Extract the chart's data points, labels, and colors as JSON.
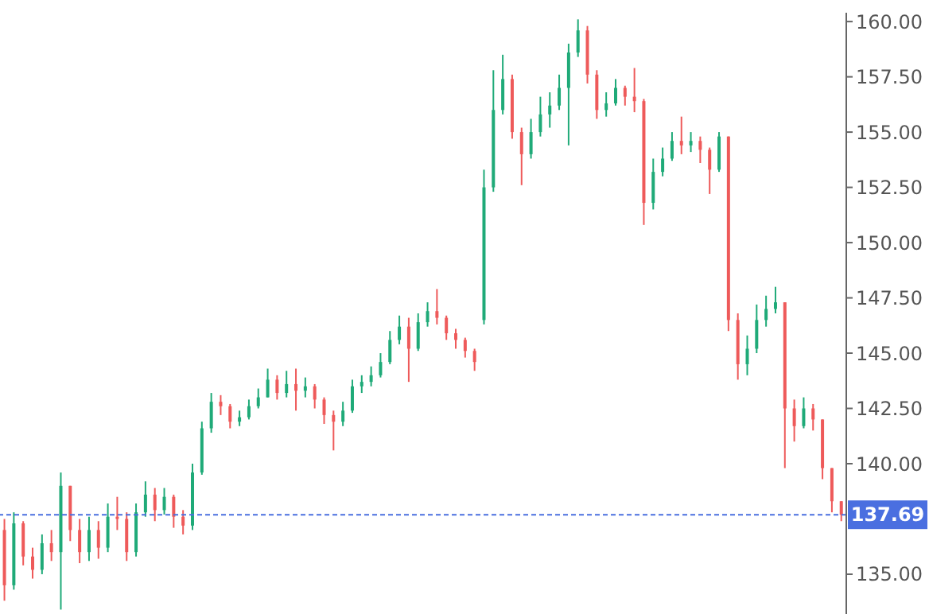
{
  "chart_data": {
    "type": "candlestick",
    "categories": [
      null,
      null,
      null,
      null,
      null,
      null,
      null,
      null,
      null,
      null,
      null,
      null,
      null,
      null,
      null,
      null,
      null,
      null,
      null,
      null,
      null,
      null,
      null,
      null,
      null,
      null,
      null,
      null,
      null,
      null,
      null,
      null,
      null,
      null,
      null,
      null,
      null,
      null,
      null,
      null,
      null,
      null,
      null,
      null,
      null,
      null,
      null,
      null,
      null,
      null,
      null,
      null,
      null,
      null,
      null,
      null,
      null,
      null,
      null,
      null,
      null,
      null,
      null,
      null,
      null,
      null,
      null,
      null,
      null,
      null,
      null,
      null,
      null,
      null,
      null,
      null,
      null,
      null,
      null,
      null,
      null,
      null,
      null,
      null,
      null,
      null,
      null,
      null,
      null,
      null
    ],
    "ohlc": [
      [
        137.0,
        137.5,
        133.8,
        134.5
      ],
      [
        134.5,
        137.8,
        134.3,
        137.3
      ],
      [
        137.3,
        137.4,
        135.4,
        135.8
      ],
      [
        135.8,
        136.2,
        134.8,
        135.2
      ],
      [
        135.2,
        136.8,
        135.0,
        136.4
      ],
      [
        136.4,
        137.0,
        135.6,
        136.0
      ],
      [
        136.0,
        139.6,
        133.4,
        139.0
      ],
      [
        139.0,
        139.0,
        136.5,
        137.0
      ],
      [
        137.0,
        137.5,
        135.5,
        136.0
      ],
      [
        136.0,
        137.6,
        135.6,
        137.0
      ],
      [
        137.0,
        137.4,
        135.7,
        136.2
      ],
      [
        136.2,
        138.2,
        136.0,
        137.6
      ],
      [
        137.6,
        138.5,
        137.0,
        137.5
      ],
      [
        137.5,
        137.8,
        135.6,
        136.0
      ],
      [
        136.0,
        138.2,
        135.8,
        137.8
      ],
      [
        137.8,
        139.2,
        137.6,
        138.6
      ],
      [
        138.6,
        138.9,
        137.4,
        137.9
      ],
      [
        137.9,
        138.9,
        137.7,
        138.5
      ],
      [
        138.5,
        138.6,
        137.1,
        137.6
      ],
      [
        137.6,
        137.9,
        136.8,
        137.2
      ],
      [
        137.2,
        140.0,
        137.0,
        139.6
      ],
      [
        139.6,
        141.9,
        139.5,
        141.6
      ],
      [
        141.6,
        143.2,
        141.4,
        142.8
      ],
      [
        142.8,
        143.1,
        142.2,
        142.6
      ],
      [
        142.6,
        142.7,
        141.6,
        141.9
      ],
      [
        141.9,
        142.4,
        141.7,
        142.1
      ],
      [
        142.1,
        142.9,
        142.0,
        142.6
      ],
      [
        142.6,
        143.4,
        142.5,
        143.0
      ],
      [
        143.0,
        144.3,
        143.0,
        143.8
      ],
      [
        143.8,
        144.0,
        142.9,
        143.2
      ],
      [
        143.2,
        144.2,
        143.0,
        143.6
      ],
      [
        143.6,
        144.3,
        142.4,
        143.3
      ],
      [
        143.3,
        143.9,
        143.0,
        143.5
      ],
      [
        143.5,
        143.6,
        142.5,
        142.9
      ],
      [
        142.9,
        143.0,
        141.8,
        142.2
      ],
      [
        142.2,
        142.4,
        140.6,
        141.9
      ],
      [
        141.9,
        142.8,
        141.7,
        142.4
      ],
      [
        142.4,
        143.8,
        142.3,
        143.5
      ],
      [
        143.5,
        144.0,
        143.2,
        143.7
      ],
      [
        143.7,
        144.4,
        143.5,
        144.0
      ],
      [
        144.0,
        145.0,
        143.9,
        144.6
      ],
      [
        144.6,
        146.0,
        144.5,
        145.6
      ],
      [
        145.6,
        146.7,
        145.4,
        146.2
      ],
      [
        146.2,
        146.6,
        143.7,
        145.2
      ],
      [
        145.2,
        146.8,
        145.1,
        146.4
      ],
      [
        146.4,
        147.3,
        146.2,
        146.9
      ],
      [
        146.9,
        147.9,
        146.3,
        146.6
      ],
      [
        146.6,
        146.7,
        145.6,
        145.9
      ],
      [
        145.9,
        146.1,
        145.2,
        145.6
      ],
      [
        145.6,
        145.7,
        144.8,
        145.1
      ],
      [
        145.1,
        145.2,
        144.2,
        144.6
      ],
      [
        146.5,
        153.3,
        146.3,
        152.5
      ],
      [
        152.5,
        157.8,
        152.3,
        156.0
      ],
      [
        156.0,
        158.5,
        155.8,
        157.4
      ],
      [
        157.4,
        157.6,
        154.7,
        155.0
      ],
      [
        155.0,
        155.2,
        152.6,
        154.0
      ],
      [
        154.0,
        155.6,
        153.8,
        155.0
      ],
      [
        155.0,
        156.6,
        154.8,
        155.8
      ],
      [
        155.8,
        156.8,
        155.2,
        156.2
      ],
      [
        156.2,
        157.6,
        156.0,
        157.0
      ],
      [
        157.0,
        159.0,
        154.4,
        158.6
      ],
      [
        158.6,
        160.1,
        158.4,
        159.6
      ],
      [
        159.6,
        159.8,
        157.2,
        157.6
      ],
      [
        157.6,
        157.8,
        155.6,
        156.0
      ],
      [
        156.0,
        156.8,
        155.7,
        156.3
      ],
      [
        156.3,
        157.4,
        156.2,
        157.0
      ],
      [
        157.0,
        157.1,
        156.2,
        156.6
      ],
      [
        156.6,
        157.9,
        155.9,
        156.4
      ],
      [
        156.4,
        156.5,
        150.8,
        151.8
      ],
      [
        151.8,
        153.8,
        151.5,
        153.2
      ],
      [
        153.2,
        154.3,
        153.0,
        153.8
      ],
      [
        153.8,
        155.0,
        153.7,
        154.6
      ],
      [
        154.6,
        155.7,
        154.0,
        154.4
      ],
      [
        154.4,
        155.0,
        154.1,
        154.6
      ],
      [
        154.6,
        154.8,
        153.6,
        154.2
      ],
      [
        154.2,
        154.3,
        152.2,
        153.3
      ],
      [
        153.3,
        155.0,
        153.2,
        154.8
      ],
      [
        154.8,
        154.8,
        146.0,
        146.5
      ],
      [
        146.5,
        146.8,
        143.8,
        144.5
      ],
      [
        144.5,
        145.8,
        144.0,
        145.2
      ],
      [
        145.2,
        147.2,
        145.0,
        146.5
      ],
      [
        146.5,
        147.6,
        146.2,
        147.0
      ],
      [
        147.0,
        148.0,
        146.8,
        147.3
      ],
      [
        147.3,
        147.3,
        139.8,
        142.5
      ],
      [
        142.5,
        142.9,
        141.0,
        141.7
      ],
      [
        141.7,
        143.0,
        141.6,
        142.5
      ],
      [
        142.5,
        142.7,
        141.5,
        142.0
      ],
      [
        142.0,
        142.0,
        139.3,
        139.8
      ],
      [
        139.8,
        139.8,
        137.8,
        138.3
      ],
      [
        138.3,
        138.3,
        137.4,
        137.69
      ]
    ],
    "colors": [
      "#ee5a5a",
      "#1faa78",
      "#ee5a5a",
      "#ee5a5a",
      "#1faa78",
      "#ee5a5a",
      "#1faa78",
      "#ee5a5a",
      "#ee5a5a",
      "#1faa78",
      "#ee5a5a",
      "#1faa78",
      "#ee5a5a",
      "#ee5a5a",
      "#1faa78",
      "#1faa78",
      "#ee5a5a",
      "#1faa78",
      "#ee5a5a",
      "#ee5a5a",
      "#1faa78",
      "#1faa78",
      "#1faa78",
      "#ee5a5a",
      "#ee5a5a",
      "#1faa78",
      "#1faa78",
      "#1faa78",
      "#1faa78",
      "#ee5a5a",
      "#1faa78",
      "#ee5a5a",
      "#1faa78",
      "#ee5a5a",
      "#ee5a5a",
      "#ee5a5a",
      "#1faa78",
      "#1faa78",
      "#1faa78",
      "#1faa78",
      "#1faa78",
      "#1faa78",
      "#1faa78",
      "#ee5a5a",
      "#1faa78",
      "#1faa78",
      "#ee5a5a",
      "#ee5a5a",
      "#ee5a5a",
      "#ee5a5a",
      "#ee5a5a",
      "#1faa78",
      "#1faa78",
      "#1faa78",
      "#ee5a5a",
      "#ee5a5a",
      "#1faa78",
      "#1faa78",
      "#1faa78",
      "#1faa78",
      "#1faa78",
      "#1faa78",
      "#ee5a5a",
      "#ee5a5a",
      "#1faa78",
      "#1faa78",
      "#ee5a5a",
      "#ee5a5a",
      "#ee5a5a",
      "#1faa78",
      "#1faa78",
      "#1faa78",
      "#ee5a5a",
      "#1faa78",
      "#ee5a5a",
      "#ee5a5a",
      "#1faa78",
      "#ee5a5a",
      "#ee5a5a",
      "#1faa78",
      "#1faa78",
      "#1faa78",
      "#1faa78",
      "#ee5a5a",
      "#ee5a5a",
      "#1faa78",
      "#ee5a5a",
      "#ee5a5a",
      "#ee5a5a",
      "#ee5a5a"
    ],
    "ylim": [
      133.2,
      160.4
    ],
    "yticks": [
      {
        "value": 135,
        "label": "135.00"
      },
      {
        "value": 140,
        "label": "140.00"
      },
      {
        "value": 142.5,
        "label": "142.50"
      },
      {
        "value": 145,
        "label": "145.00"
      },
      {
        "value": 147.5,
        "label": "147.50"
      },
      {
        "value": 150,
        "label": "150.00"
      },
      {
        "value": 152.5,
        "label": "152.50"
      },
      {
        "value": 155,
        "label": "155.00"
      },
      {
        "value": 157.5,
        "label": "157.50"
      },
      {
        "value": 160,
        "label": "160.00"
      }
    ],
    "ref_lines": [
      {
        "axis": "y",
        "value": 137.69,
        "label": "137.69",
        "color": "#4a6fe0",
        "line_style": "dashed"
      }
    ],
    "grid": false,
    "tick_labels": "y"
  }
}
